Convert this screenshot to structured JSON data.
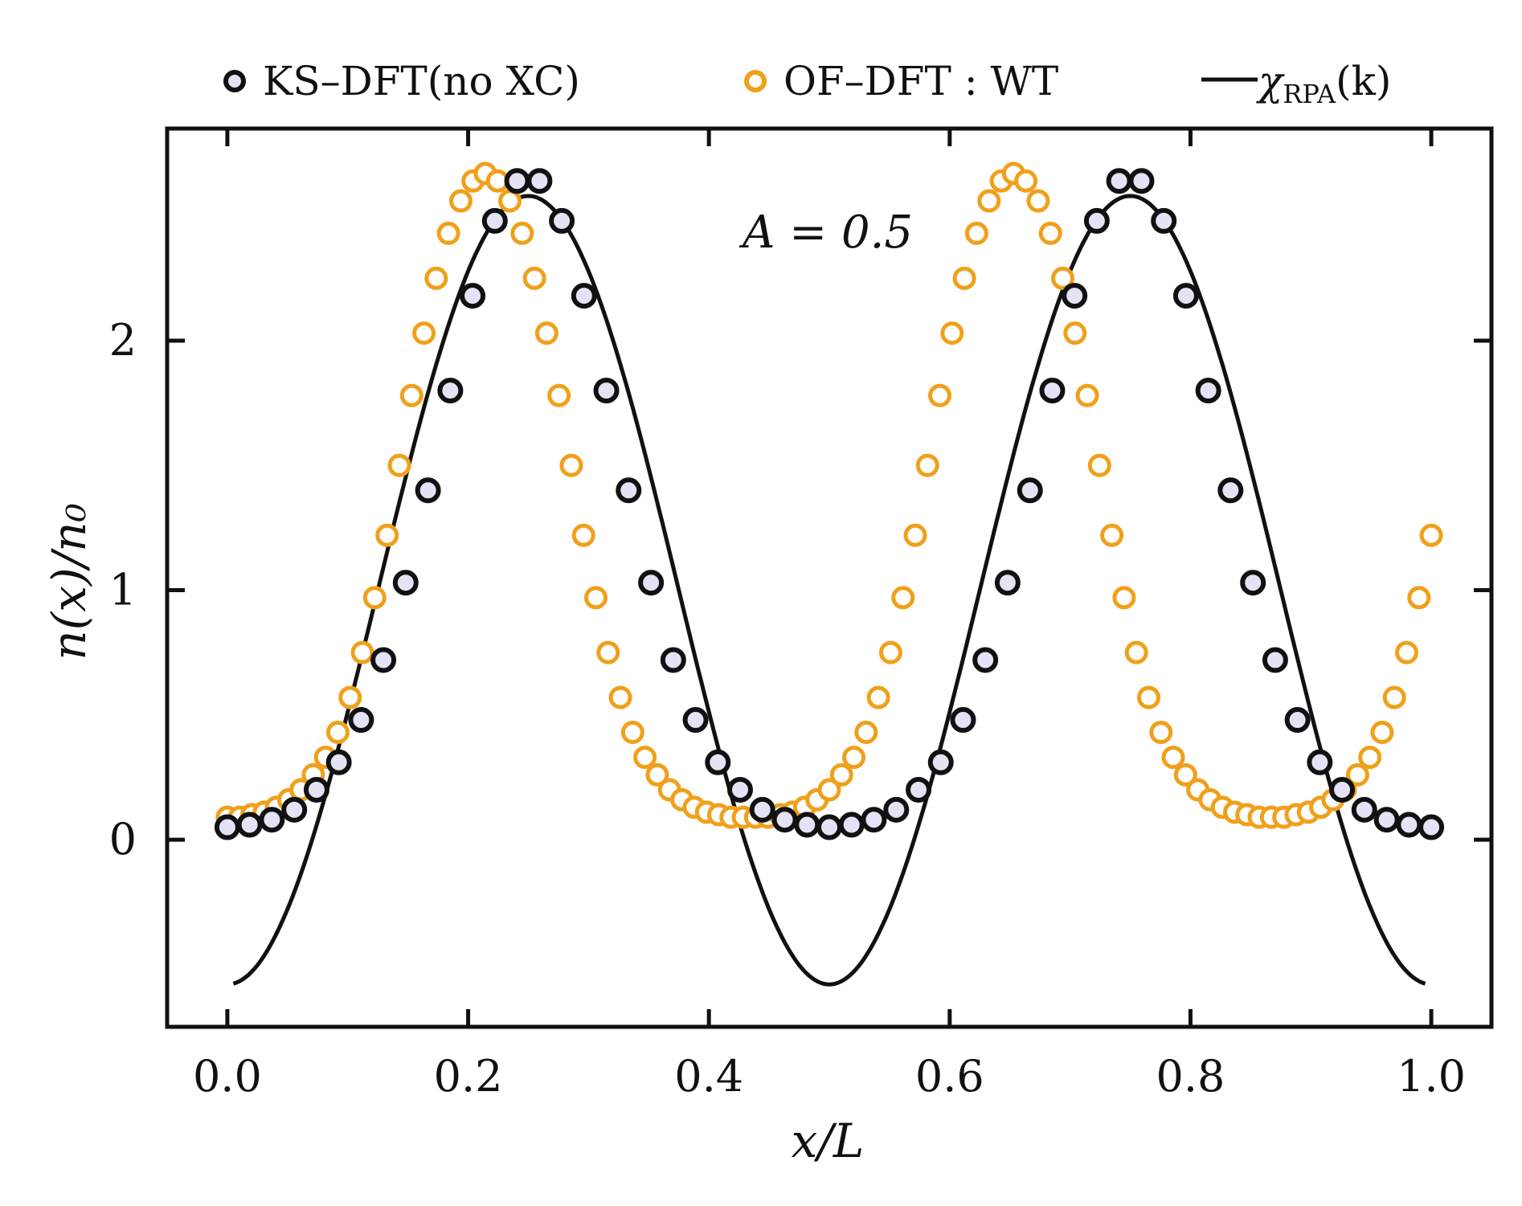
{
  "chart_data": {
    "type": "scatter",
    "title": "",
    "xlabel": "x/L",
    "ylabel": "n(x)/n₀",
    "xlim": [
      -0.05,
      1.05
    ],
    "ylim": [
      -0.75,
      2.85
    ],
    "x_ticks": [
      0.0,
      0.2,
      0.4,
      0.6,
      0.8,
      1.0
    ],
    "x_tick_labels": [
      "0.0",
      "0.2",
      "0.4",
      "0.6",
      "0.8",
      "1.0"
    ],
    "y_ticks": [
      0,
      1,
      2
    ],
    "y_tick_labels": [
      "0",
      "1",
      "2"
    ],
    "grid": false,
    "legend_position": "top-outside",
    "annotation": "A = 0.5",
    "series": [
      {
        "name": "KS–DFT(no XC)",
        "marker": "open-circle",
        "color": "#111111",
        "fill": "#e4e2f5",
        "x": [
          0.0,
          0.0185,
          0.037,
          0.0556,
          0.0741,
          0.0926,
          0.1111,
          0.1296,
          0.1481,
          0.1667,
          0.1852,
          0.2037,
          0.2222,
          0.2407,
          0.2593,
          0.2778,
          0.2963,
          0.3148,
          0.3333,
          0.3519,
          0.3704,
          0.3889,
          0.4074,
          0.4259,
          0.4444,
          0.463,
          0.4815,
          0.5,
          0.5185,
          0.537,
          0.5556,
          0.5741,
          0.5926,
          0.6111,
          0.6296,
          0.6481,
          0.6667,
          0.6852,
          0.7037,
          0.7222,
          0.7407,
          0.7593,
          0.7778,
          0.7963,
          0.8148,
          0.8333,
          0.8519,
          0.8704,
          0.8889,
          0.9074,
          0.9259,
          0.9444,
          0.963,
          0.9815,
          1.0
        ],
        "values": [
          0.05,
          0.06,
          0.08,
          0.12,
          0.2,
          0.31,
          0.48,
          0.72,
          1.03,
          1.4,
          1.8,
          2.18,
          2.48,
          2.64,
          2.64,
          2.48,
          2.18,
          1.8,
          1.4,
          1.03,
          0.72,
          0.48,
          0.31,
          0.2,
          0.12,
          0.08,
          0.06,
          0.05,
          0.06,
          0.08,
          0.12,
          0.2,
          0.31,
          0.48,
          0.72,
          1.03,
          1.4,
          1.8,
          2.18,
          2.48,
          2.64,
          2.64,
          2.48,
          2.18,
          1.8,
          1.4,
          1.03,
          0.72,
          0.48,
          0.31,
          0.2,
          0.12,
          0.08,
          0.06,
          0.05
        ]
      },
      {
        "name": "OF–DFT : WT",
        "marker": "open-circle",
        "color": "#f0a01a",
        "fill": "#ffffff",
        "x": [
          0.0,
          0.0102,
          0.0204,
          0.0306,
          0.0408,
          0.051,
          0.0612,
          0.0714,
          0.0816,
          0.0918,
          0.102,
          0.1122,
          0.1224,
          0.1327,
          0.1429,
          0.1531,
          0.1633,
          0.1735,
          0.1837,
          0.1939,
          0.2041,
          0.2143,
          0.2245,
          0.2347,
          0.2449,
          0.2551,
          0.2653,
          0.2755,
          0.2857,
          0.2959,
          0.3061,
          0.3163,
          0.3265,
          0.3367,
          0.3469,
          0.3571,
          0.3673,
          0.3776,
          0.3878,
          0.398,
          0.4082,
          0.4184,
          0.4286,
          0.4388,
          0.449,
          0.4592,
          0.4694,
          0.4796,
          0.4898,
          0.5,
          0.5102,
          0.5204,
          0.5306,
          0.5408,
          0.551,
          0.5612,
          0.5714,
          0.5816,
          0.5918,
          0.602,
          0.6122,
          0.6224,
          0.6327,
          0.6429,
          0.6531,
          0.6633,
          0.6735,
          0.6837,
          0.6939,
          0.7041,
          0.7143,
          0.7245,
          0.7347,
          0.7449,
          0.7551,
          0.7653,
          0.7755,
          0.7857,
          0.7959,
          0.8061,
          0.8163,
          0.8265,
          0.8367,
          0.8469,
          0.8571,
          0.8673,
          0.8776,
          0.8878,
          0.898,
          0.9082,
          0.9184,
          0.9286,
          0.9388,
          0.949,
          0.9592,
          0.9694,
          0.9796,
          0.9898,
          1.0
        ],
        "values": [
          0.09,
          0.09,
          0.1,
          0.11,
          0.13,
          0.16,
          0.2,
          0.26,
          0.33,
          0.43,
          0.57,
          0.75,
          0.97,
          1.22,
          1.5,
          1.78,
          2.03,
          2.25,
          2.43,
          2.56,
          2.64,
          2.67,
          2.64,
          2.56,
          2.43,
          2.25,
          2.03,
          1.78,
          1.5,
          1.22,
          0.97,
          0.75,
          0.57,
          0.43,
          0.33,
          0.26,
          0.2,
          0.16,
          0.13,
          0.11,
          0.1,
          0.09,
          0.09,
          0.09,
          0.09,
          0.1,
          0.11,
          0.13,
          0.16,
          0.2,
          0.26,
          0.33,
          0.43,
          0.57,
          0.75,
          0.97,
          1.22,
          1.5,
          1.78,
          2.03,
          2.25,
          2.43,
          2.56,
          2.64,
          2.67,
          2.64,
          2.56,
          2.43,
          2.25,
          2.03,
          1.78,
          1.5,
          1.22,
          0.97,
          0.75,
          0.57,
          0.43,
          0.33,
          0.26,
          0.2,
          0.16,
          0.13,
          0.11,
          0.1,
          0.09,
          0.09,
          0.09,
          0.1,
          0.11,
          0.13,
          0.16,
          0.2,
          0.26,
          0.33,
          0.43,
          0.57,
          0.75,
          0.97,
          1.22
        ]
      },
      {
        "name": "χ_RPA(k)",
        "marker": "line",
        "color": "#111111",
        "function": "1 - 1.58*cos(4*pi*x)",
        "x_range": [
          0.005,
          0.995
        ]
      }
    ]
  },
  "legend": {
    "ks_label": "KS–DFT(no XC)",
    "of_label": "OF–DFT : WT",
    "rpa_symbol": "χ",
    "rpa_subscript": "RPA",
    "rpa_suffix": "(k)"
  }
}
